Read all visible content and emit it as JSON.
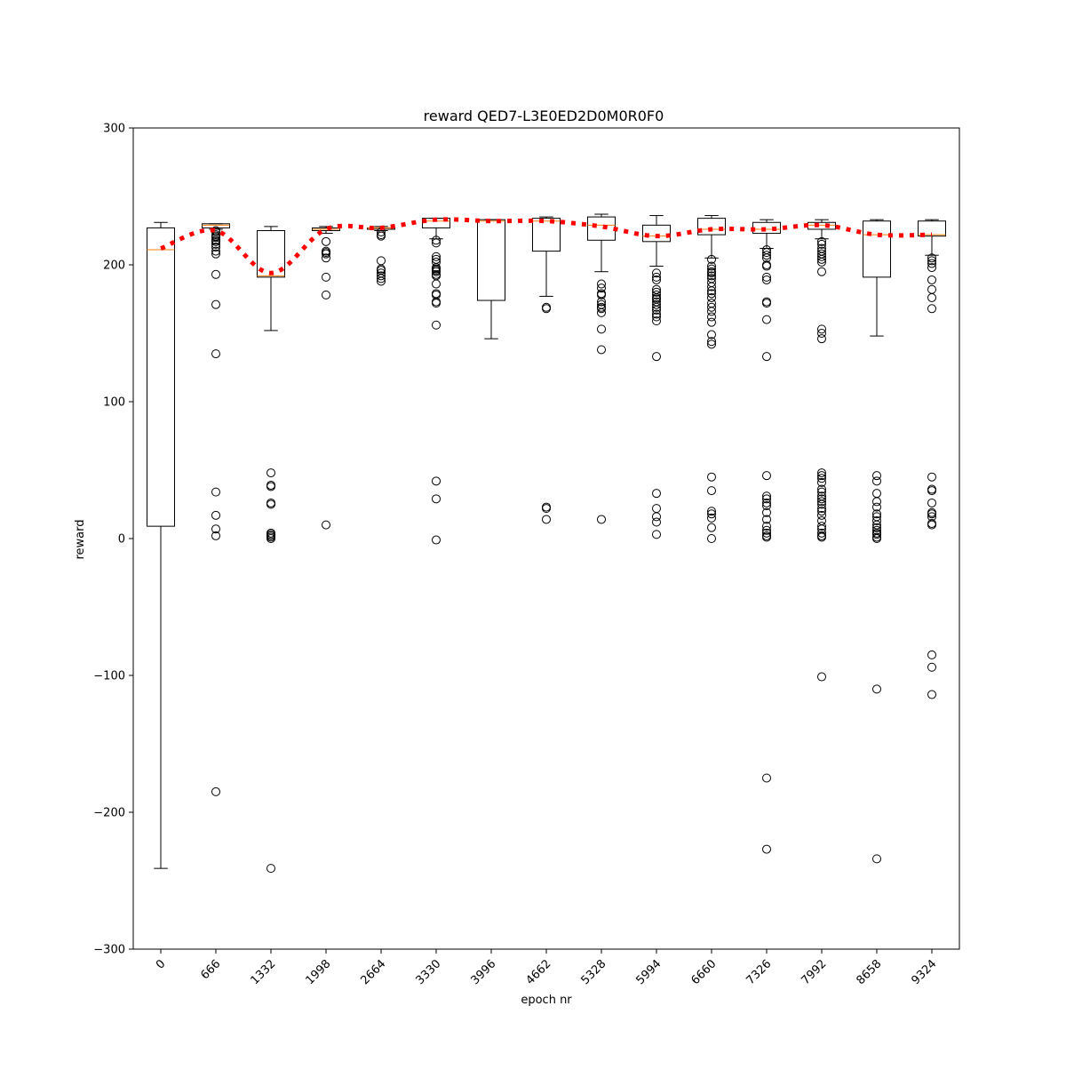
{
  "chart_data": {
    "type": "box",
    "title": "reward QED7-L3E0ED2D0M0R0F0",
    "xlabel": "epoch nr",
    "ylabel": "reward",
    "ylim": [
      -300,
      300
    ],
    "yticks": [
      -300,
      -200,
      -100,
      0,
      100,
      200,
      300
    ],
    "categories": [
      "0",
      "666",
      "1332",
      "1998",
      "2664",
      "3330",
      "3996",
      "4662",
      "5328",
      "5994",
      "6660",
      "7326",
      "7992",
      "8658",
      "9324"
    ],
    "boxes": [
      {
        "whisker_low": -241,
        "q1": 9,
        "median": 211,
        "q3": 227,
        "whisker_high": 231,
        "outliers": []
      },
      {
        "whisker_low": 226,
        "q1": 227,
        "median": 229,
        "q3": 230,
        "whisker_high": 230,
        "outliers": [
          225,
          224,
          222,
          221,
          220,
          218,
          217,
          215,
          213,
          210,
          208,
          193,
          171,
          135,
          34,
          17,
          7,
          2,
          -185
        ]
      },
      {
        "whisker_low": 152,
        "q1": 191,
        "median": 192,
        "q3": 225,
        "whisker_high": 228,
        "outliers": [
          48,
          39,
          38,
          26,
          25,
          4,
          3,
          2,
          1,
          0,
          -241
        ]
      },
      {
        "whisker_low": 223,
        "q1": 225,
        "median": 226,
        "q3": 227,
        "whisker_high": 228,
        "outliers": [
          217,
          210,
          209,
          208,
          205,
          191,
          178,
          10
        ]
      },
      {
        "whisker_low": 225,
        "q1": 226,
        "median": 227,
        "q3": 227,
        "whisker_high": 228,
        "outliers": [
          224,
          222,
          221,
          203,
          197,
          196,
          194,
          192,
          190,
          188
        ]
      },
      {
        "whisker_low": 219,
        "q1": 227,
        "median": 232,
        "q3": 234,
        "whisker_high": 234,
        "outliers": [
          218,
          216,
          206,
          204,
          202,
          198,
          197,
          196,
          195,
          193,
          192,
          186,
          179,
          178,
          173,
          172,
          156,
          42,
          29,
          -1
        ]
      },
      {
        "whisker_low": 146,
        "q1": 174,
        "median": 232,
        "q3": 233,
        "whisker_high": 233,
        "outliers": []
      },
      {
        "whisker_low": 177,
        "q1": 210,
        "median": 232,
        "q3": 234,
        "whisker_high": 235,
        "outliers": [
          169,
          168,
          23,
          22,
          14
        ]
      },
      {
        "whisker_low": 195,
        "q1": 218,
        "median": 229,
        "q3": 235,
        "whisker_high": 237,
        "outliers": [
          186,
          183,
          179,
          178,
          173,
          171,
          169,
          168,
          165,
          153,
          138,
          14
        ]
      },
      {
        "whisker_low": 199,
        "q1": 217,
        "median": 221,
        "q3": 229,
        "whisker_high": 236,
        "outliers": [
          194,
          191,
          189,
          182,
          180,
          178,
          176,
          175,
          173,
          171,
          169,
          167,
          164,
          162,
          159,
          133,
          33,
          22,
          16,
          12,
          3
        ]
      },
      {
        "whisker_low": 205,
        "q1": 222,
        "median": 226,
        "q3": 234,
        "whisker_high": 236,
        "outliers": [
          204,
          199,
          197,
          195,
          194,
          192,
          190,
          187,
          184,
          181,
          179,
          176,
          172,
          169,
          166,
          162,
          158,
          149,
          144,
          142,
          45,
          35,
          20,
          18,
          15,
          8,
          0
        ]
      },
      {
        "whisker_low": 212,
        "q1": 223,
        "median": 226,
        "q3": 231,
        "whisker_high": 233,
        "outliers": [
          211,
          209,
          207,
          205,
          200,
          199,
          191,
          189,
          173,
          172,
          160,
          133,
          46,
          31,
          29,
          26,
          24,
          19,
          14,
          9,
          6,
          4,
          2,
          1,
          -175,
          -227
        ]
      },
      {
        "whisker_low": 219,
        "q1": 226,
        "median": 229,
        "q3": 231,
        "whisker_high": 233,
        "outliers": [
          217,
          215,
          212,
          210,
          208,
          206,
          204,
          202,
          195,
          153,
          150,
          146,
          48,
          46,
          44,
          41,
          36,
          34,
          31,
          29,
          27,
          25,
          22,
          20,
          17,
          13,
          9,
          7,
          4,
          2,
          1,
          -101
        ]
      },
      {
        "whisker_low": 148,
        "q1": 191,
        "median": 222,
        "q3": 232,
        "whisker_high": 233,
        "outliers": [
          46,
          42,
          33,
          27,
          23,
          18,
          16,
          13,
          10,
          8,
          6,
          4,
          3,
          1,
          0,
          -110,
          -234
        ]
      },
      {
        "whisker_low": 207,
        "q1": 221,
        "median": 222,
        "q3": 232,
        "whisker_high": 233,
        "outliers": [
          205,
          203,
          201,
          198,
          189,
          182,
          176,
          168,
          45,
          36,
          35,
          26,
          19,
          18,
          16,
          11,
          10,
          -85,
          -94,
          -114
        ]
      }
    ],
    "mean_line": [
      212,
      225,
      194,
      226,
      227,
      233,
      232,
      232,
      228,
      221,
      226,
      226,
      229,
      222,
      222
    ],
    "colors": {
      "box": "#000000",
      "median": "#ff7f0e",
      "mean_line": "#ff0000",
      "outlier": "#000000"
    }
  }
}
